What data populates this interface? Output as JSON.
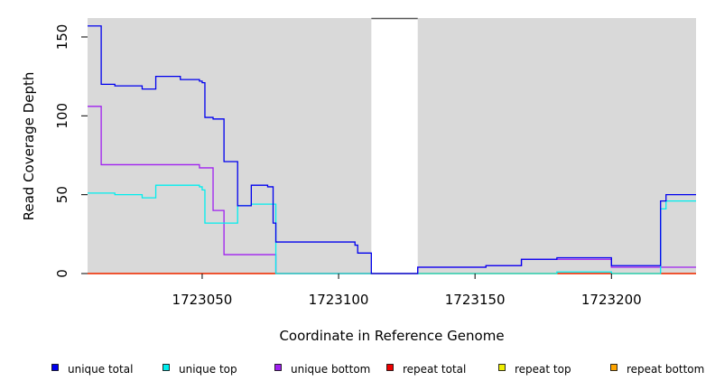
{
  "chart_data": {
    "type": "line",
    "xlabel": "Coordinate in Reference Genome",
    "ylabel": "Read Coverage Depth",
    "xlim": [
      1723008,
      1723231
    ],
    "ylim": [
      0,
      162
    ],
    "x_ticks": [
      1723050,
      1723100,
      1723150,
      1723200
    ],
    "x_tick_labels": [
      "1723050",
      "1723100",
      "1723150",
      "1723200"
    ],
    "y_ticks": [
      0,
      50,
      100,
      150
    ],
    "y_tick_labels": [
      "0",
      "50",
      "100",
      "150"
    ],
    "gap_region": [
      1723112,
      1723129
    ],
    "colors": {
      "panel_background": "#d9d9d9",
      "gap_background": "#ffffff"
    },
    "legend": {
      "position": "bottom",
      "items": [
        {
          "label": "unique total",
          "color": "#0000ee"
        },
        {
          "label": "unique top",
          "color": "#00eeee"
        },
        {
          "label": "unique bottom",
          "color": "#a020f0"
        },
        {
          "label": "repeat total",
          "color": "#ee0000"
        },
        {
          "label": "repeat top",
          "color": "#eeee00"
        },
        {
          "label": "repeat bottom",
          "color": "#ffa500"
        }
      ]
    },
    "series": [
      {
        "name": "unique total",
        "color": "#0000ee",
        "x": [
          1723008,
          1723013,
          1723018,
          1723028,
          1723033,
          1723042,
          1723049,
          1723050,
          1723051,
          1723054,
          1723058,
          1723063,
          1723068,
          1723074,
          1723076,
          1723077,
          1723106,
          1723107,
          1723112,
          1723129,
          1723154,
          1723167,
          1723180,
          1723200,
          1723218,
          1723220,
          1723231
        ],
        "y": [
          157,
          120,
          119,
          117,
          125,
          123,
          122,
          121,
          99,
          98,
          71,
          43,
          56,
          55,
          32,
          20,
          18,
          13,
          0,
          4,
          5,
          9,
          10,
          5,
          46,
          50,
          50
        ]
      },
      {
        "name": "unique top",
        "color": "#00eeee",
        "x": [
          1723008,
          1723018,
          1723028,
          1723033,
          1723049,
          1723050,
          1723051,
          1723063,
          1723068,
          1723077,
          1723112,
          1723129,
          1723180,
          1723200,
          1723218,
          1723220,
          1723231
        ],
        "y": [
          51,
          50,
          48,
          56,
          55,
          53,
          32,
          43,
          44,
          0,
          0,
          0,
          1,
          0,
          41,
          46,
          46
        ]
      },
      {
        "name": "unique bottom",
        "color": "#a020f0",
        "x": [
          1723008,
          1723013,
          1723049,
          1723054,
          1723058,
          1723076,
          1723077,
          1723112,
          1723129,
          1723154,
          1723167,
          1723180,
          1723200,
          1723218,
          1723231
        ],
        "y": [
          106,
          69,
          67,
          40,
          12,
          12,
          0,
          0,
          4,
          5,
          9,
          9,
          4,
          4,
          4
        ]
      },
      {
        "name": "repeat total",
        "color": "#ee0000",
        "x": [
          1723008,
          1723231
        ],
        "y": [
          0,
          0
        ]
      },
      {
        "name": "repeat top",
        "color": "#eeee00",
        "x": [
          1723008,
          1723231
        ],
        "y": [
          0,
          0
        ]
      },
      {
        "name": "repeat bottom",
        "color": "#ffa500",
        "x": [
          1723008,
          1723231
        ],
        "y": [
          0,
          0
        ]
      }
    ]
  }
}
